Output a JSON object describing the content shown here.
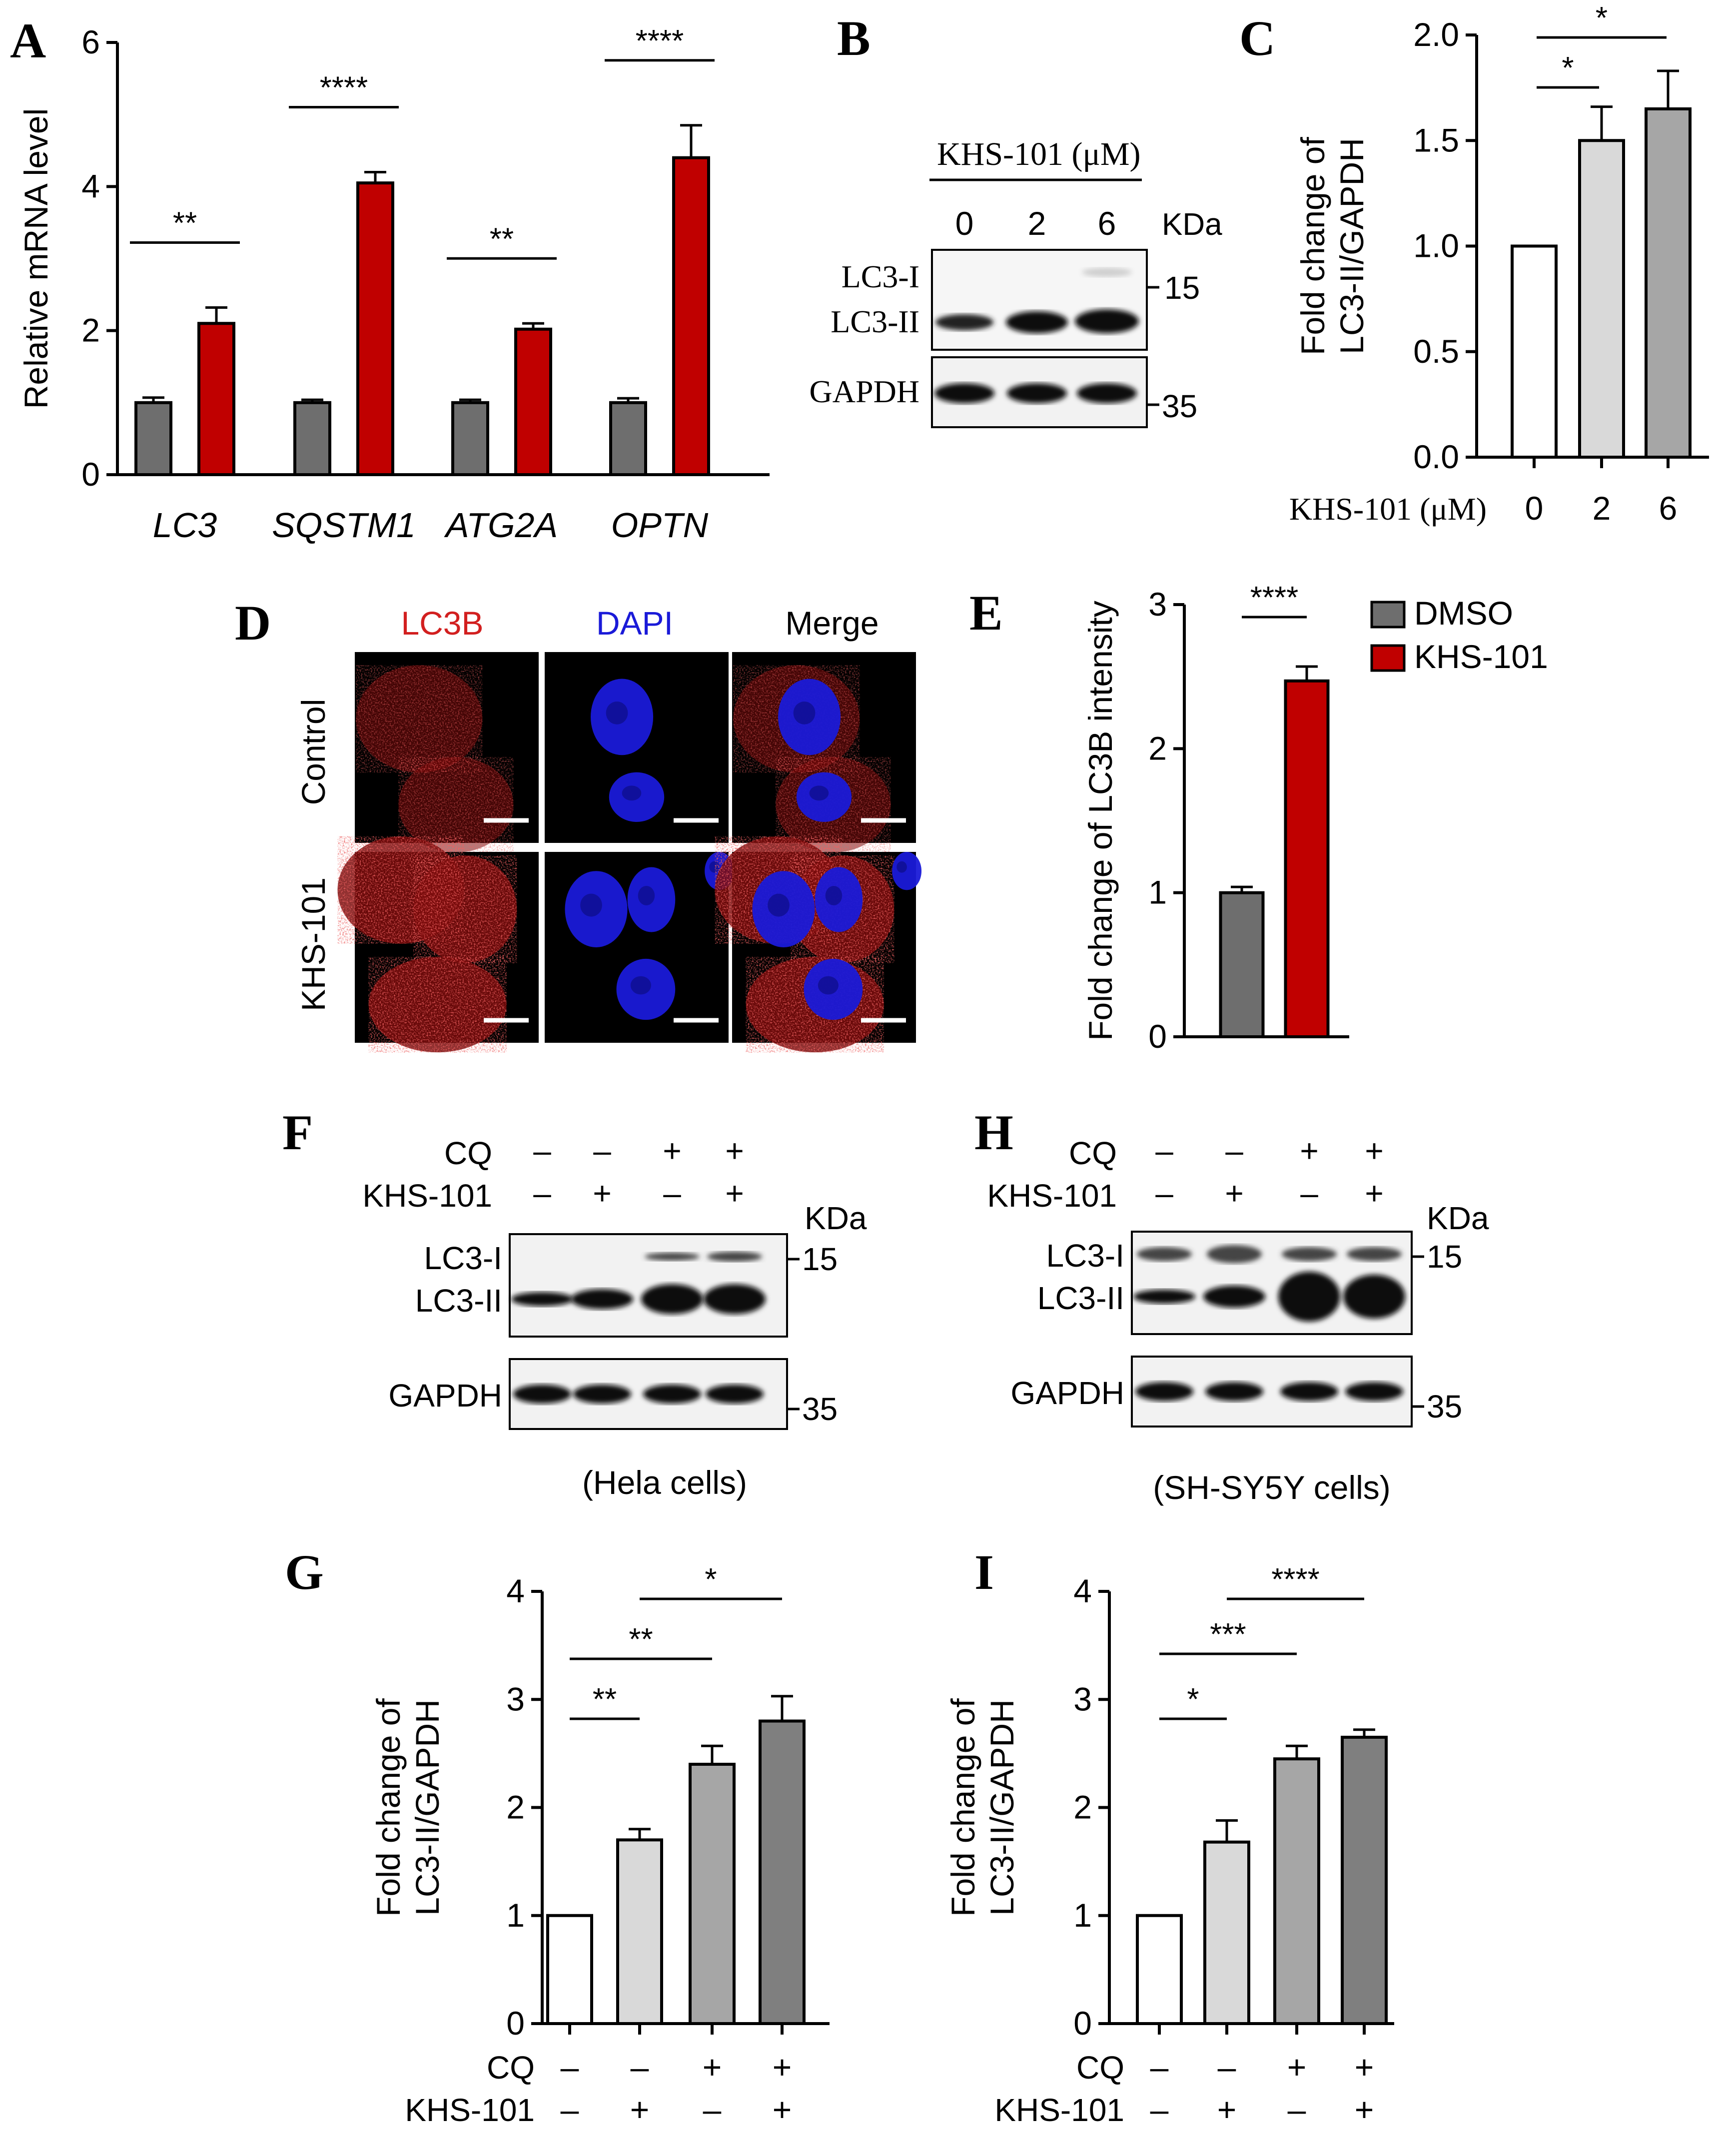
{
  "panel_letters": [
    "A",
    "B",
    "C",
    "D",
    "E",
    "F",
    "G",
    "H",
    "I"
  ],
  "colors": {
    "dmso": "#6e6e6e",
    "khs": "#c00000",
    "white": "#ffffff",
    "light": "#d9d9d9",
    "mid": "#a6a6a6",
    "dark": "#7f7f7f",
    "lc3b": "#d21f1f",
    "dapi": "#1a1ad8"
  },
  "legend": {
    "dmso": "DMSO",
    "khs": "KHS-101"
  },
  "blot_b": {
    "title": "KHS-101 (μM)",
    "lanes": [
      "0",
      "2",
      "6"
    ],
    "kda": "KDa",
    "bands": [
      "LC3-I",
      "LC3-II",
      "GAPDH"
    ],
    "markers": [
      "15",
      "35"
    ]
  },
  "blot_f": {
    "row1": "CQ",
    "row2": "KHS-101",
    "row1_vals": [
      "–",
      "–",
      "+",
      "+"
    ],
    "row2_vals": [
      "–",
      "+",
      "–",
      "+"
    ],
    "kda": "KDa",
    "bands": [
      "LC3-I",
      "LC3-II",
      "GAPDH"
    ],
    "markers": [
      "15",
      "35"
    ],
    "caption": "(Hela cells)"
  },
  "blot_h": {
    "row1": "CQ",
    "row2": "KHS-101",
    "row1_vals": [
      "–",
      "–",
      "+",
      "+"
    ],
    "row2_vals": [
      "–",
      "+",
      "–",
      "+"
    ],
    "kda": "KDa",
    "bands": [
      "LC3-I",
      "LC3-II",
      "GAPDH"
    ],
    "markers": [
      "15",
      "35"
    ],
    "caption": "(SH-SY5Y cells)"
  },
  "micro_d": {
    "columns": [
      "LC3B",
      "DAPI",
      "Merge"
    ],
    "rows": [
      "Control",
      "KHS-101"
    ]
  },
  "chart_data": [
    {
      "id": "A",
      "type": "bar",
      "ylabel": "Relative mRNA level",
      "ylim": [
        0,
        6
      ],
      "yticks": [
        0,
        2,
        4,
        6
      ],
      "categories": [
        "LC3",
        "SQSTM1",
        "ATG2A",
        "OPTN"
      ],
      "series": [
        {
          "values": [
            1.0,
            1.0,
            1.0,
            1.0
          ],
          "errors": [
            0.07,
            0.04,
            0.04,
            0.06
          ]
        },
        {
          "values": [
            2.1,
            4.05,
            2.02,
            4.4
          ],
          "errors": [
            0.22,
            0.15,
            0.08,
            0.45
          ]
        }
      ],
      "significance": [
        "**",
        "****",
        "**",
        "****"
      ]
    },
    {
      "id": "C",
      "type": "bar",
      "ylabel": "Fold change of LC3-II/GAPDH",
      "ylim": [
        0,
        2.0
      ],
      "yticks": [
        "0.0",
        "0.5",
        "1.0",
        "1.5",
        "2.0"
      ],
      "xlabel": "KHS-101 (μM)",
      "categories": [
        "0",
        "2",
        "6"
      ],
      "values": [
        1.0,
        1.5,
        1.65
      ],
      "errors": [
        0,
        0.16,
        0.18
      ],
      "significance": [
        {
          "from": 0,
          "to": 1,
          "label": "*"
        },
        {
          "from": 0,
          "to": 2,
          "label": "*"
        }
      ]
    },
    {
      "id": "E",
      "type": "bar",
      "ylabel": "Fold change of LC3B intensity",
      "ylim": [
        0,
        3
      ],
      "yticks": [
        0,
        1,
        2,
        3
      ],
      "categories": [
        "DMSO",
        "KHS-101"
      ],
      "values": [
        1.0,
        2.47
      ],
      "errors": [
        0.04,
        0.1
      ],
      "significance": [
        "****"
      ]
    },
    {
      "id": "G",
      "type": "bar",
      "ylabel": "Fold change of LC3-II/GAPDH",
      "ylim": [
        0,
        4
      ],
      "yticks": [
        0,
        1,
        2,
        3,
        4
      ],
      "row_labels": [
        "CQ",
        "KHS-101"
      ],
      "cq": [
        "–",
        "–",
        "+",
        "+"
      ],
      "khs": [
        "–",
        "+",
        "–",
        "+"
      ],
      "values": [
        1.0,
        1.7,
        2.4,
        2.8
      ],
      "errors": [
        0,
        0.1,
        0.17,
        0.23
      ],
      "significance": [
        {
          "from": 0,
          "to": 1,
          "label": "**"
        },
        {
          "from": 0,
          "to": 2,
          "label": "**"
        },
        {
          "from": 1,
          "to": 3,
          "label": "*"
        }
      ]
    },
    {
      "id": "I",
      "type": "bar",
      "ylabel": "Fold change of LC3-II/GAPDH",
      "ylim": [
        0,
        4
      ],
      "yticks": [
        0,
        1,
        2,
        3,
        4
      ],
      "row_labels": [
        "CQ",
        "KHS-101"
      ],
      "cq": [
        "–",
        "–",
        "+",
        "+"
      ],
      "khs": [
        "–",
        "+",
        "–",
        "+"
      ],
      "values": [
        1.0,
        1.68,
        2.45,
        2.65
      ],
      "errors": [
        0,
        0.2,
        0.12,
        0.07
      ],
      "significance": [
        {
          "from": 0,
          "to": 1,
          "label": "*"
        },
        {
          "from": 0,
          "to": 2,
          "label": "***"
        },
        {
          "from": 1,
          "to": 3,
          "label": "****"
        }
      ]
    }
  ]
}
